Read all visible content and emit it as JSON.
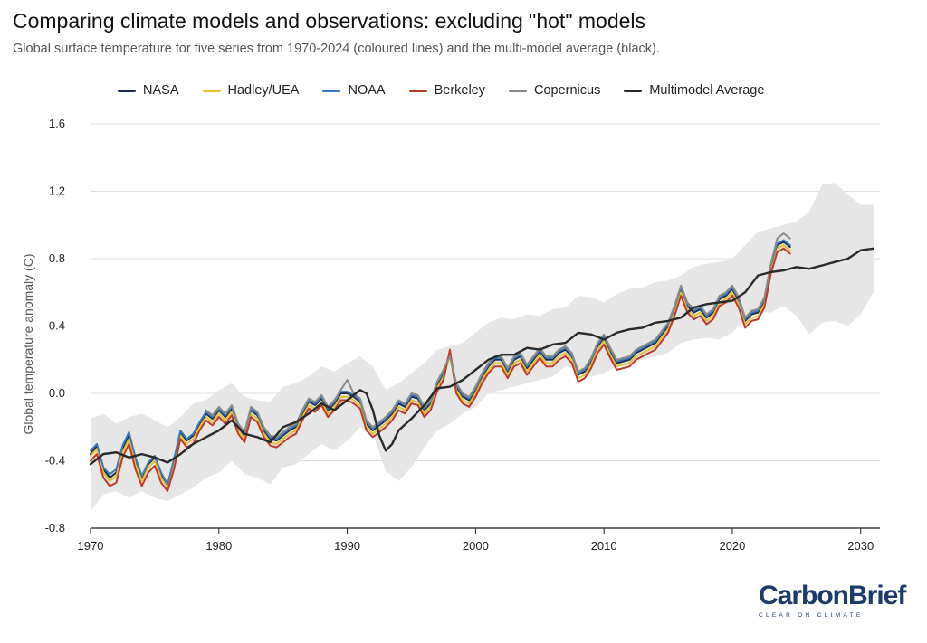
{
  "header": {
    "title": "Comparing climate models and observations: excluding \"hot\" models",
    "subtitle": "Global surface temperature for five series from 1970-2024 (coloured lines) and the multi-model average (black)."
  },
  "brand": {
    "name": "CarbonBrief",
    "name_part1": "Carbon",
    "name_part2": "Brief",
    "tagline": "CLEAR ON CLIMATE",
    "color": "#1c3a6b"
  },
  "chart_data": {
    "type": "line",
    "title": "Comparing climate models and observations: excluding \"hot\" models",
    "xlabel": "",
    "ylabel": "Global temperature anomaly (C)",
    "xlim": [
      1970,
      2031.5
    ],
    "ylim": [
      -0.8,
      1.6
    ],
    "xticks": [
      1970,
      1980,
      1990,
      2000,
      2010,
      2020,
      2030
    ],
    "yticks": [
      -0.8,
      -0.4,
      0.0,
      0.4,
      0.8,
      1.2,
      1.6
    ],
    "ytick_labels": [
      "-0.8",
      "-0.4",
      "0.0",
      "0.4",
      "0.8",
      "1.2",
      "1.6"
    ],
    "grid": true,
    "legend_position": "top",
    "observations": {
      "x": [
        1970.0,
        1970.5,
        1971.0,
        1971.5,
        1972.0,
        1972.5,
        1973.0,
        1973.5,
        1974.0,
        1974.5,
        1975.0,
        1975.5,
        1976.0,
        1976.5,
        1977.0,
        1977.5,
        1978.0,
        1978.5,
        1979.0,
        1979.5,
        1980.0,
        1980.5,
        1981.0,
        1981.5,
        1982.0,
        1982.5,
        1983.0,
        1983.5,
        1984.0,
        1984.5,
        1985.0,
        1985.5,
        1986.0,
        1986.5,
        1987.0,
        1987.5,
        1988.0,
        1988.5,
        1989.0,
        1989.5,
        1990.0,
        1990.5,
        1991.0,
        1991.5,
        1992.0,
        1992.5,
        1993.0,
        1993.5,
        1994.0,
        1994.5,
        1995.0,
        1995.5,
        1996.0,
        1996.5,
        1997.0,
        1997.5,
        1998.0,
        1998.5,
        1999.0,
        1999.5,
        2000.0,
        2000.5,
        2001.0,
        2001.5,
        2002.0,
        2002.5,
        2003.0,
        2003.5,
        2004.0,
        2004.5,
        2005.0,
        2005.5,
        2006.0,
        2006.5,
        2007.0,
        2007.5,
        2008.0,
        2008.5,
        2009.0,
        2009.5,
        2010.0,
        2010.5,
        2011.0,
        2011.5,
        2012.0,
        2012.5,
        2013.0,
        2013.5,
        2014.0,
        2014.5,
        2015.0,
        2015.5,
        2016.0,
        2016.5,
        2017.0,
        2017.5,
        2018.0,
        2018.5,
        2019.0,
        2019.5,
        2020.0,
        2020.5,
        2021.0,
        2021.5,
        2022.0,
        2022.5,
        2023.0,
        2023.5,
        2024.0,
        2024.5
      ],
      "series": [
        {
          "name": "NASA",
          "color": "#1a2b4c",
          "values": [
            -0.36,
            -0.31,
            -0.45,
            -0.5,
            -0.47,
            -0.33,
            -0.25,
            -0.4,
            -0.5,
            -0.42,
            -0.38,
            -0.48,
            -0.55,
            -0.4,
            -0.23,
            -0.28,
            -0.25,
            -0.18,
            -0.12,
            -0.15,
            -0.1,
            -0.14,
            -0.09,
            -0.2,
            -0.25,
            -0.1,
            -0.13,
            -0.22,
            -0.27,
            -0.28,
            -0.25,
            -0.22,
            -0.2,
            -0.12,
            -0.05,
            -0.07,
            -0.03,
            -0.1,
            -0.06,
            0.0,
            0.0,
            -0.02,
            -0.05,
            -0.18,
            -0.22,
            -0.19,
            -0.16,
            -0.12,
            -0.06,
            -0.08,
            -0.02,
            -0.03,
            -0.1,
            -0.06,
            0.05,
            0.12,
            0.24,
            0.04,
            -0.02,
            -0.04,
            0.02,
            0.1,
            0.16,
            0.2,
            0.2,
            0.13,
            0.2,
            0.22,
            0.15,
            0.2,
            0.25,
            0.2,
            0.2,
            0.24,
            0.26,
            0.22,
            0.11,
            0.13,
            0.19,
            0.28,
            0.33,
            0.25,
            0.18,
            0.19,
            0.2,
            0.24,
            0.26,
            0.28,
            0.3,
            0.35,
            0.4,
            0.5,
            0.62,
            0.52,
            0.48,
            0.5,
            0.45,
            0.48,
            0.56,
            0.58,
            0.62,
            0.55,
            0.43,
            0.47,
            0.48,
            0.55,
            0.75,
            0.88,
            0.9,
            0.87
          ]
        },
        {
          "name": "Hadley/UEA",
          "color": "#e6c12f",
          "values": [
            -0.37,
            -0.33,
            -0.47,
            -0.52,
            -0.49,
            -0.35,
            -0.27,
            -0.42,
            -0.52,
            -0.44,
            -0.4,
            -0.5,
            -0.56,
            -0.42,
            -0.25,
            -0.3,
            -0.27,
            -0.2,
            -0.14,
            -0.17,
            -0.12,
            -0.16,
            -0.11,
            -0.22,
            -0.27,
            -0.12,
            -0.15,
            -0.24,
            -0.29,
            -0.3,
            -0.27,
            -0.24,
            -0.22,
            -0.14,
            -0.07,
            -0.09,
            -0.05,
            -0.12,
            -0.08,
            -0.02,
            -0.02,
            -0.04,
            -0.07,
            -0.2,
            -0.24,
            -0.21,
            -0.18,
            -0.14,
            -0.08,
            -0.1,
            -0.04,
            -0.05,
            -0.12,
            -0.08,
            0.03,
            0.1,
            0.22,
            0.02,
            -0.04,
            -0.06,
            0.0,
            0.08,
            0.14,
            0.18,
            0.18,
            0.11,
            0.18,
            0.2,
            0.13,
            0.18,
            0.23,
            0.18,
            0.18,
            0.22,
            0.24,
            0.2,
            0.09,
            0.11,
            0.17,
            0.26,
            0.31,
            0.23,
            0.16,
            0.17,
            0.18,
            0.22,
            0.24,
            0.26,
            0.28,
            0.33,
            0.38,
            0.48,
            0.6,
            0.5,
            0.46,
            0.48,
            0.43,
            0.46,
            0.54,
            0.56,
            0.6,
            0.53,
            0.41,
            0.45,
            0.46,
            0.53,
            0.73,
            0.86,
            0.88,
            0.85
          ]
        },
        {
          "name": "NOAA",
          "color": "#3d7ab5",
          "values": [
            -0.34,
            -0.3,
            -0.44,
            -0.48,
            -0.45,
            -0.31,
            -0.23,
            -0.38,
            -0.49,
            -0.41,
            -0.37,
            -0.47,
            -0.54,
            -0.39,
            -0.22,
            -0.27,
            -0.24,
            -0.17,
            -0.11,
            -0.14,
            -0.09,
            -0.13,
            -0.08,
            -0.19,
            -0.24,
            -0.09,
            -0.12,
            -0.21,
            -0.26,
            -0.27,
            -0.24,
            -0.21,
            -0.19,
            -0.11,
            -0.04,
            -0.06,
            -0.02,
            -0.09,
            -0.05,
            0.01,
            0.01,
            -0.01,
            -0.04,
            -0.17,
            -0.21,
            -0.18,
            -0.15,
            -0.11,
            -0.05,
            -0.07,
            -0.01,
            -0.02,
            -0.09,
            -0.05,
            0.06,
            0.13,
            0.23,
            0.05,
            -0.01,
            -0.03,
            0.03,
            0.11,
            0.17,
            0.21,
            0.21,
            0.14,
            0.21,
            0.23,
            0.16,
            0.21,
            0.26,
            0.21,
            0.21,
            0.25,
            0.27,
            0.23,
            0.12,
            0.14,
            0.2,
            0.29,
            0.34,
            0.26,
            0.19,
            0.2,
            0.21,
            0.25,
            0.27,
            0.29,
            0.31,
            0.36,
            0.41,
            0.51,
            0.63,
            0.53,
            0.49,
            0.51,
            0.46,
            0.49,
            0.57,
            0.59,
            0.63,
            0.56,
            0.44,
            0.48,
            0.49,
            0.56,
            0.76,
            0.89,
            0.91,
            0.88
          ]
        },
        {
          "name": "Berkeley",
          "color": "#c0392b",
          "values": [
            -0.4,
            -0.36,
            -0.5,
            -0.55,
            -0.53,
            -0.38,
            -0.3,
            -0.45,
            -0.55,
            -0.47,
            -0.43,
            -0.53,
            -0.58,
            -0.45,
            -0.27,
            -0.32,
            -0.3,
            -0.22,
            -0.16,
            -0.19,
            -0.14,
            -0.18,
            -0.13,
            -0.24,
            -0.29,
            -0.14,
            -0.17,
            -0.26,
            -0.31,
            -0.32,
            -0.29,
            -0.26,
            -0.24,
            -0.16,
            -0.09,
            -0.11,
            -0.07,
            -0.14,
            -0.1,
            -0.04,
            -0.04,
            -0.06,
            -0.09,
            -0.22,
            -0.26,
            -0.23,
            -0.2,
            -0.16,
            -0.1,
            -0.12,
            -0.06,
            -0.07,
            -0.14,
            -0.1,
            0.01,
            0.08,
            0.26,
            0.0,
            -0.06,
            -0.08,
            -0.02,
            0.06,
            0.12,
            0.16,
            0.16,
            0.09,
            0.16,
            0.18,
            0.11,
            0.16,
            0.21,
            0.16,
            0.16,
            0.2,
            0.22,
            0.18,
            0.07,
            0.09,
            0.15,
            0.24,
            0.29,
            0.21,
            0.14,
            0.15,
            0.16,
            0.2,
            0.22,
            0.24,
            0.26,
            0.31,
            0.36,
            0.46,
            0.58,
            0.48,
            0.44,
            0.46,
            0.41,
            0.44,
            0.52,
            0.54,
            0.58,
            0.51,
            0.39,
            0.43,
            0.44,
            0.51,
            0.71,
            0.84,
            0.86,
            0.83
          ]
        },
        {
          "name": "Copernicus",
          "color": "#8a8a8a",
          "values": [
            null,
            null,
            null,
            null,
            null,
            null,
            null,
            null,
            null,
            null,
            null,
            null,
            null,
            null,
            null,
            null,
            null,
            null,
            -0.1,
            -0.13,
            -0.08,
            -0.12,
            -0.07,
            -0.18,
            -0.23,
            -0.08,
            -0.11,
            -0.2,
            -0.25,
            -0.26,
            -0.23,
            -0.2,
            -0.18,
            -0.1,
            -0.03,
            -0.05,
            -0.01,
            -0.08,
            -0.04,
            0.02,
            0.08,
            0.0,
            -0.03,
            -0.16,
            -0.2,
            -0.17,
            -0.14,
            -0.1,
            -0.04,
            -0.06,
            0.0,
            -0.01,
            -0.08,
            -0.04,
            0.07,
            0.14,
            0.22,
            0.06,
            0.0,
            -0.02,
            0.04,
            0.12,
            0.18,
            0.22,
            0.22,
            0.15,
            0.22,
            0.24,
            0.17,
            0.22,
            0.27,
            0.22,
            0.22,
            0.26,
            0.28,
            0.24,
            0.13,
            0.15,
            0.21,
            0.3,
            0.35,
            0.27,
            0.2,
            0.21,
            0.22,
            0.26,
            0.28,
            0.3,
            0.32,
            0.37,
            0.42,
            0.52,
            0.64,
            0.54,
            0.5,
            0.52,
            0.47,
            0.5,
            0.58,
            0.6,
            0.64,
            0.57,
            0.45,
            0.49,
            0.5,
            0.57,
            0.77,
            0.92,
            0.95,
            0.92
          ]
        }
      ]
    },
    "multimodel_average": {
      "name": "Multimodel Average",
      "color": "#2a2a2a",
      "x": [
        1970,
        1971,
        1972,
        1973,
        1974,
        1975,
        1976,
        1977,
        1978,
        1979,
        1980,
        1981,
        1982,
        1983,
        1984,
        1985,
        1986,
        1987,
        1988,
        1989,
        1990,
        1991,
        1991.5,
        1992,
        1992.5,
        1993,
        1993.5,
        1994,
        1995,
        1996,
        1997,
        1998,
        1999,
        2000,
        2001,
        2002,
        2003,
        2004,
        2005,
        2006,
        2007,
        2008,
        2009,
        2010,
        2011,
        2012,
        2013,
        2014,
        2015,
        2016,
        2017,
        2018,
        2019,
        2020,
        2021,
        2022,
        2023,
        2024,
        2025,
        2026,
        2027,
        2028,
        2029,
        2030,
        2031
      ],
      "values": [
        -0.42,
        -0.36,
        -0.35,
        -0.38,
        -0.36,
        -0.38,
        -0.41,
        -0.36,
        -0.3,
        -0.26,
        -0.22,
        -0.16,
        -0.24,
        -0.26,
        -0.29,
        -0.2,
        -0.17,
        -0.12,
        -0.06,
        -0.1,
        -0.04,
        0.02,
        0.0,
        -0.1,
        -0.25,
        -0.34,
        -0.3,
        -0.22,
        -0.15,
        -0.07,
        0.03,
        0.04,
        0.08,
        0.14,
        0.2,
        0.23,
        0.23,
        0.27,
        0.26,
        0.29,
        0.3,
        0.36,
        0.35,
        0.32,
        0.36,
        0.38,
        0.39,
        0.42,
        0.43,
        0.45,
        0.51,
        0.53,
        0.54,
        0.55,
        0.6,
        0.7,
        0.72,
        0.73,
        0.75,
        0.74,
        0.76,
        0.78,
        0.8,
        0.85,
        0.86
      ]
    },
    "model_range": {
      "name": "Model range",
      "color": "#e6e6e6",
      "x": [
        1970,
        1971,
        1972,
        1973,
        1974,
        1975,
        1976,
        1977,
        1978,
        1979,
        1980,
        1981,
        1982,
        1983,
        1984,
        1985,
        1986,
        1987,
        1988,
        1989,
        1990,
        1991,
        1992,
        1993,
        1994,
        1995,
        1996,
        1997,
        1998,
        1999,
        2000,
        2001,
        2002,
        2003,
        2004,
        2005,
        2006,
        2007,
        2008,
        2009,
        2010,
        2011,
        2012,
        2013,
        2014,
        2015,
        2016,
        2017,
        2018,
        2019,
        2020,
        2021,
        2022,
        2023,
        2024,
        2025,
        2026,
        2027,
        2028,
        2029,
        2030,
        2031
      ],
      "upper": [
        -0.15,
        -0.12,
        -0.18,
        -0.14,
        -0.12,
        -0.16,
        -0.2,
        -0.14,
        -0.06,
        -0.04,
        0.02,
        0.06,
        -0.02,
        -0.04,
        -0.05,
        0.04,
        0.06,
        0.1,
        0.16,
        0.13,
        0.18,
        0.22,
        0.16,
        0.02,
        0.06,
        0.12,
        0.18,
        0.26,
        0.28,
        0.3,
        0.36,
        0.42,
        0.45,
        0.44,
        0.47,
        0.46,
        0.5,
        0.51,
        0.58,
        0.57,
        0.54,
        0.59,
        0.62,
        0.63,
        0.66,
        0.67,
        0.7,
        0.75,
        0.77,
        0.78,
        0.8,
        0.88,
        0.96,
        0.98,
        1.0,
        1.02,
        1.08,
        1.24,
        1.25,
        1.18,
        1.12,
        1.12
      ],
      "lower": [
        -0.7,
        -0.6,
        -0.58,
        -0.62,
        -0.58,
        -0.62,
        -0.64,
        -0.6,
        -0.56,
        -0.5,
        -0.47,
        -0.4,
        -0.48,
        -0.5,
        -0.54,
        -0.44,
        -0.42,
        -0.36,
        -0.3,
        -0.34,
        -0.28,
        -0.2,
        -0.24,
        -0.46,
        -0.52,
        -0.44,
        -0.32,
        -0.22,
        -0.18,
        -0.12,
        -0.08,
        0.0,
        0.02,
        0.04,
        0.06,
        0.08,
        0.1,
        0.16,
        0.14,
        0.1,
        0.12,
        0.16,
        0.18,
        0.2,
        0.22,
        0.24,
        0.3,
        0.32,
        0.33,
        0.32,
        0.36,
        0.44,
        0.48,
        0.48,
        0.52,
        0.46,
        0.35,
        0.42,
        0.43,
        0.4,
        0.47,
        0.6
      ]
    }
  }
}
